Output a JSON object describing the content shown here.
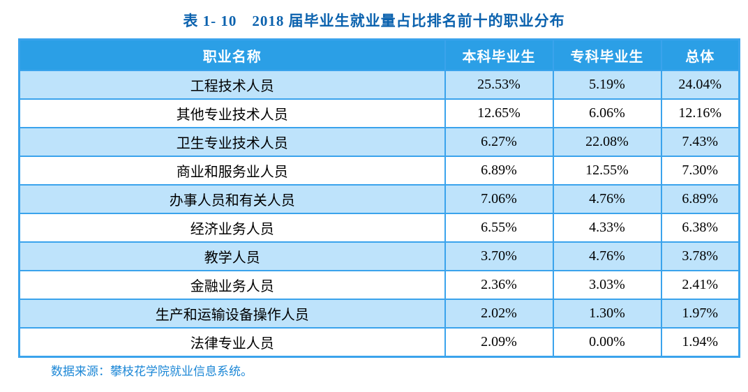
{
  "title": "表 1- 10　2018 届毕业生就业量占比排名前十的职业分布",
  "table": {
    "headers": [
      "职业名称",
      "本科毕业生",
      "专科毕业生",
      "总体"
    ],
    "rows": [
      {
        "name": "工程技术人员",
        "undergraduate": "25.53%",
        "junior_college": "5.19%",
        "overall": "24.04%"
      },
      {
        "name": "其他专业技术人员",
        "undergraduate": "12.65%",
        "junior_college": "6.06%",
        "overall": "12.16%"
      },
      {
        "name": "卫生专业技术人员",
        "undergraduate": "6.27%",
        "junior_college": "22.08%",
        "overall": "7.43%"
      },
      {
        "name": "商业和服务业人员",
        "undergraduate": "6.89%",
        "junior_college": "12.55%",
        "overall": "7.30%"
      },
      {
        "name": "办事人员和有关人员",
        "undergraduate": "7.06%",
        "junior_college": "4.76%",
        "overall": "6.89%"
      },
      {
        "name": "经济业务人员",
        "undergraduate": "6.55%",
        "junior_college": "4.33%",
        "overall": "6.38%"
      },
      {
        "name": "教学人员",
        "undergraduate": "3.70%",
        "junior_college": "4.76%",
        "overall": "3.78%"
      },
      {
        "name": "金融业务人员",
        "undergraduate": "2.36%",
        "junior_college": "3.03%",
        "overall": "2.41%"
      },
      {
        "name": "生产和运输设备操作人员",
        "undergraduate": "2.02%",
        "junior_college": "1.30%",
        "overall": "1.97%"
      },
      {
        "name": "法律专业人员",
        "undergraduate": "2.09%",
        "junior_college": "0.00%",
        "overall": "1.94%"
      }
    ]
  },
  "footer": {
    "source_note": "数据来源：攀枝花学院就业信息系统。"
  },
  "colors": {
    "header_bg": "#2b9fe6",
    "row_alt_bg": "#bee3fb",
    "border": "#3aa3ec",
    "title_text": "#0b62ae",
    "footer_text": "#1c87d6",
    "cell_text": "#000000"
  }
}
